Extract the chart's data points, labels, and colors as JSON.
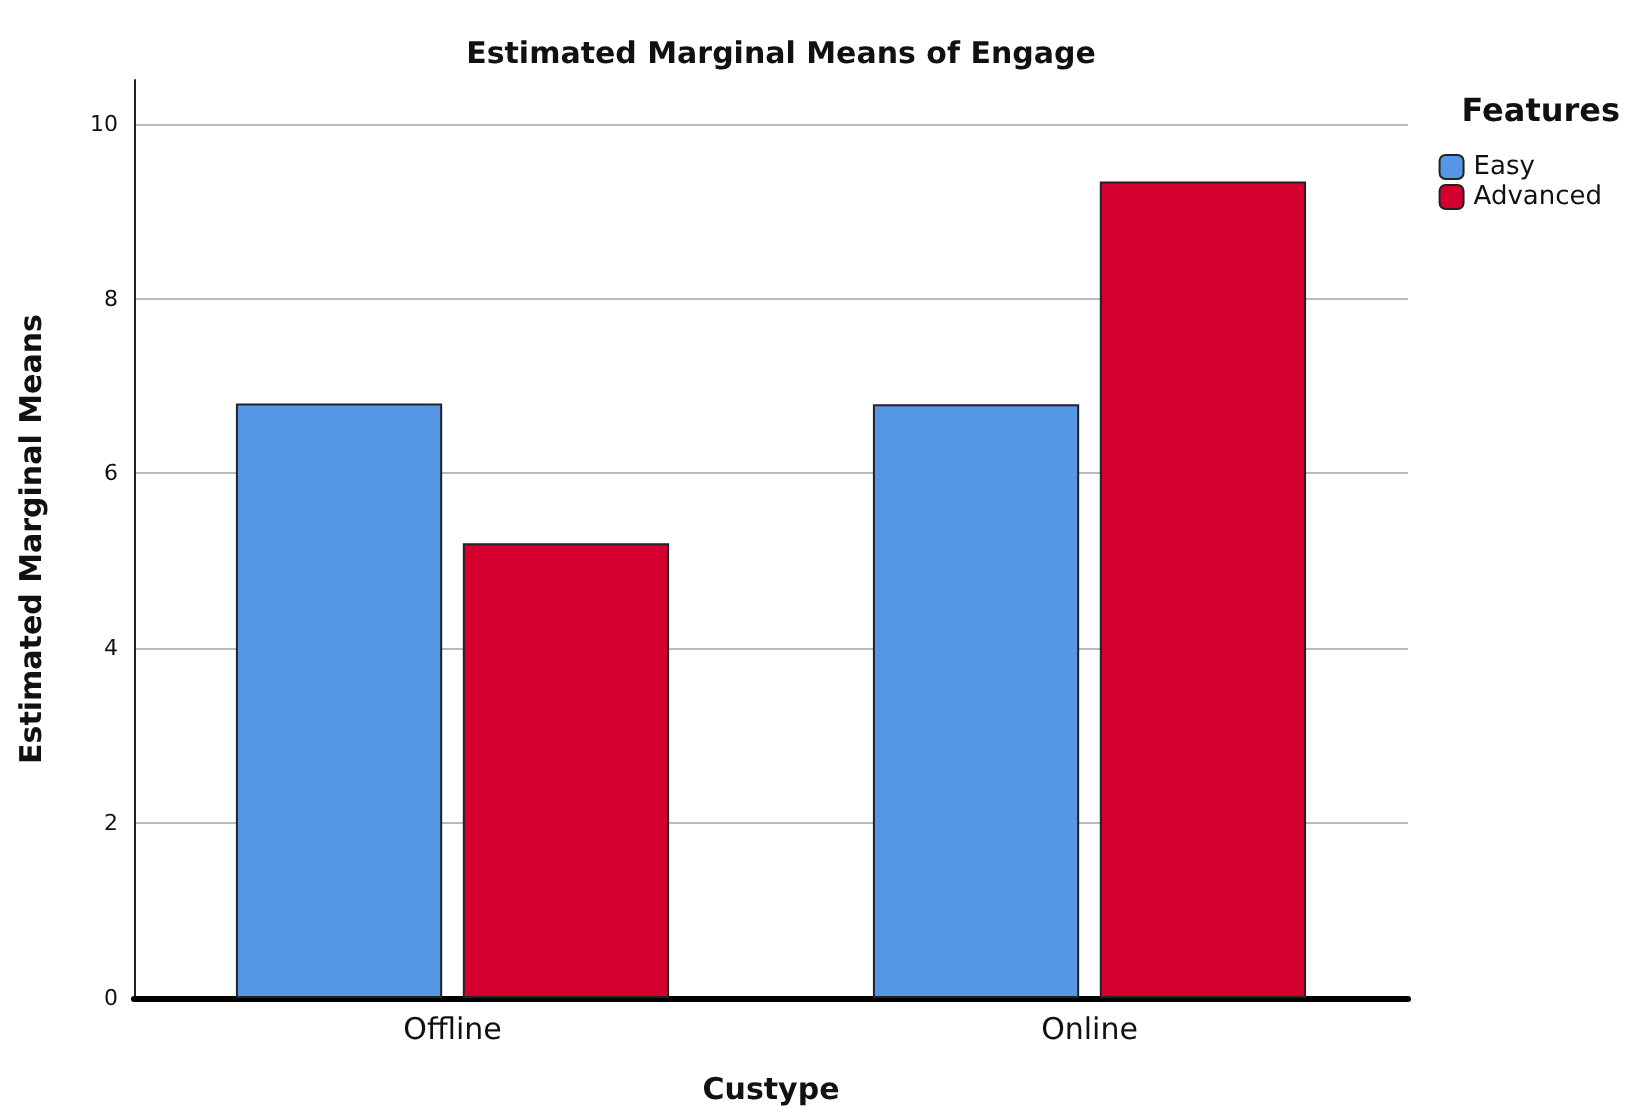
{
  "chart_data": {
    "type": "bar",
    "title": "Estimated Marginal Means of Engage",
    "xlabel": "Custype",
    "ylabel": "Estimated Marginal Means",
    "legend_title": "Features",
    "categories": [
      "Offline",
      "Online"
    ],
    "series": [
      {
        "name": "Easy",
        "color": "#5596e6",
        "values": [
          6.8,
          6.79
        ]
      },
      {
        "name": "Advanced",
        "color": "#d3002f",
        "values": [
          5.2,
          9.34
        ]
      }
    ],
    "ylim": [
      0,
      10.5
    ],
    "yticks": [
      0,
      2,
      4,
      6,
      8,
      10
    ],
    "grid": "y",
    "legend": "top right"
  }
}
